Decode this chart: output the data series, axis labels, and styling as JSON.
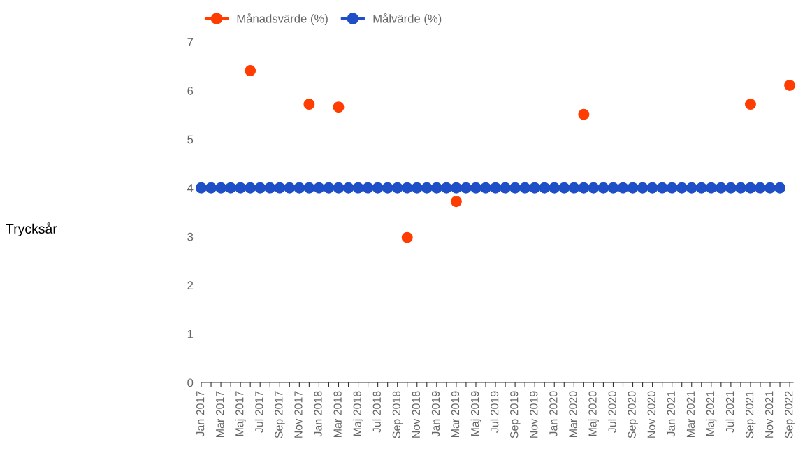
{
  "chart_data": {
    "type": "scatter",
    "annotations": [
      "Trycksår"
    ],
    "categories": [
      "Jan 2017",
      null,
      "Mar 2017",
      null,
      "Maj 2017",
      null,
      "Jul 2017",
      null,
      "Sep 2017",
      null,
      "Nov 2017",
      null,
      "Jan 2018",
      null,
      "Mar 2018",
      null,
      "Maj 2018",
      null,
      "Jul 2018",
      null,
      "Sep 2018",
      null,
      "Nov 2018",
      null,
      "Jan 2019",
      null,
      "Mar 2019",
      null,
      "Maj 2019",
      null,
      "Jul 2019",
      null,
      "Sep 2019",
      null,
      "Nov 2019",
      null,
      "Jan 2020",
      null,
      "Mar 2020",
      null,
      "Maj 2020",
      null,
      "Jul 2020",
      null,
      "Sep 2020",
      null,
      "Nov 2020",
      null,
      "Jan 2021",
      null,
      "Mar 2021",
      null,
      "Maj 2021",
      null,
      "Jul 2021",
      null,
      "Sep 2021",
      null,
      "Nov 2021",
      null,
      "Sep 2022"
    ],
    "series": [
      {
        "name": "Månadsvärde (%)",
        "color": "#ff3d00",
        "values": [
          null,
          null,
          null,
          null,
          null,
          6.41,
          null,
          null,
          null,
          null,
          null,
          5.72,
          null,
          null,
          5.66,
          null,
          null,
          null,
          null,
          null,
          null,
          2.98,
          null,
          null,
          null,
          null,
          3.72,
          null,
          null,
          null,
          null,
          null,
          null,
          null,
          null,
          null,
          null,
          null,
          null,
          5.51,
          null,
          null,
          null,
          null,
          null,
          null,
          null,
          null,
          null,
          null,
          null,
          null,
          null,
          null,
          null,
          null,
          5.72,
          null,
          null,
          null,
          6.11
        ]
      },
      {
        "name": "Målvärde (%)",
        "color": "#1f4fc7",
        "values": [
          4,
          4,
          4,
          4,
          4,
          4,
          4,
          4,
          4,
          4,
          4,
          4,
          4,
          4,
          4,
          4,
          4,
          4,
          4,
          4,
          4,
          4,
          4,
          4,
          4,
          4,
          4,
          4,
          4,
          4,
          4,
          4,
          4,
          4,
          4,
          4,
          4,
          4,
          4,
          4,
          4,
          4,
          4,
          4,
          4,
          4,
          4,
          4,
          4,
          4,
          4,
          4,
          4,
          4,
          4,
          4,
          4,
          4,
          4,
          4,
          null
        ]
      }
    ],
    "ylim": [
      0,
      7
    ],
    "yticks": [
      0,
      1,
      2,
      3,
      4,
      5,
      6,
      7
    ],
    "grid": false,
    "legend": "top left",
    "marker": "circle",
    "line_style": "solid"
  }
}
